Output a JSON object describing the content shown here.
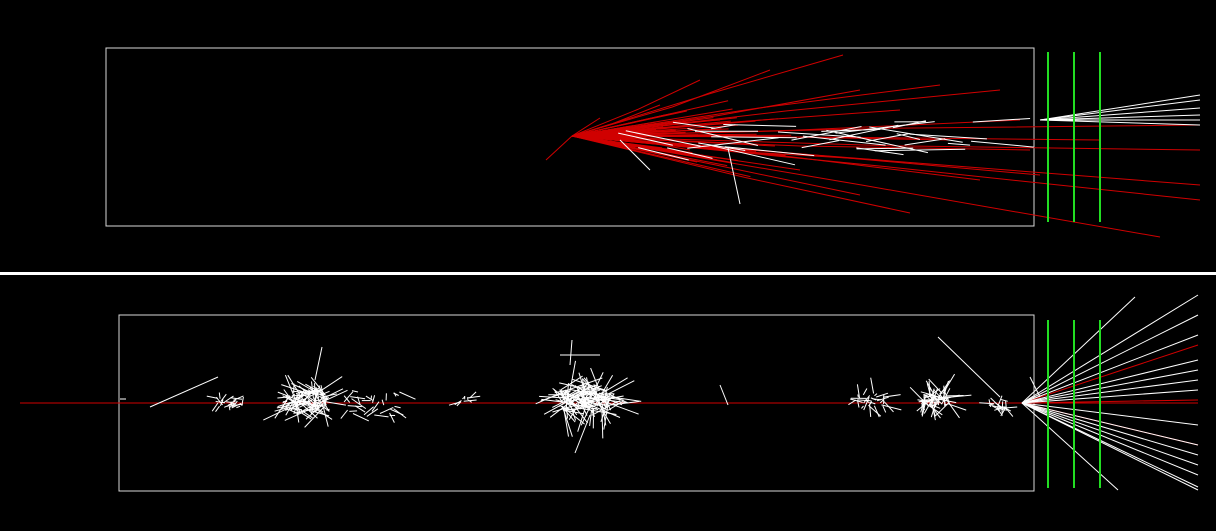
{
  "views": [
    {
      "name": "top-view",
      "view": "top",
      "detector_planes": 3
    },
    {
      "name": "side-view",
      "view": "side",
      "detector_planes": 3
    }
  ],
  "colors": {
    "background": "#000000",
    "divider": "#ffffff",
    "volume_outline": "#d9d9d9",
    "track_primary": "#d00000",
    "track_secondary": "#ffffff",
    "detector_plane": "#22dd22"
  }
}
